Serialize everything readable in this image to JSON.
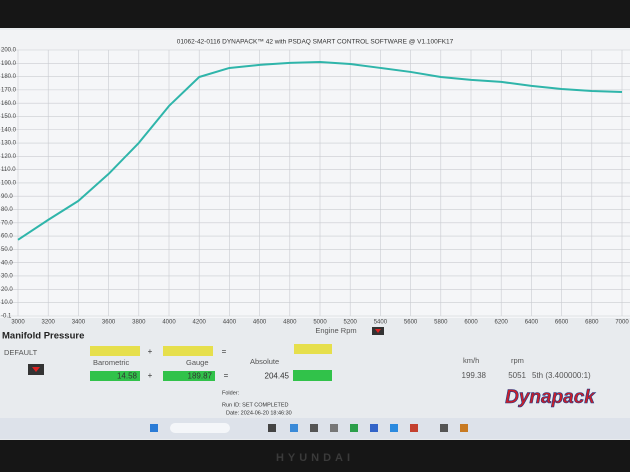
{
  "chart_data": {
    "type": "line",
    "title": "01062-42-0116 DYNAPACK™ 42 with PSDAQ SMART CONTROL SOFTWARE @ V1.100FK17",
    "x_label": "Engine Rpm",
    "x": [
      3000,
      3200,
      3400,
      3600,
      3800,
      4000,
      4200,
      4400,
      4600,
      4800,
      5000,
      5200,
      5400,
      5600,
      5800,
      6000,
      6200,
      6400,
      6600,
      6800,
      7000
    ],
    "series": [
      {
        "name": "Manifold Pressure",
        "color": "#2fb5aa",
        "values": [
          57.2,
          72.2,
          86.5,
          106.8,
          130.1,
          157.9,
          179.7,
          186.5,
          188.8,
          190.3,
          191.0,
          189.5,
          186.5,
          183.5,
          179.7,
          177.5,
          176.0,
          173.0,
          170.7,
          169.2,
          168.4
        ]
      }
    ],
    "xlim": [
      3000,
      7000
    ],
    "xticks": [
      3000,
      3200,
      3400,
      3600,
      3800,
      4000,
      4200,
      4400,
      4600,
      4800,
      5000,
      5200,
      5400,
      5600,
      5800,
      6000,
      6200,
      6400,
      6600,
      6800,
      7000
    ],
    "ylim": [
      -0.1,
      200
    ],
    "yticks": [
      -0.1,
      {
        "value": 10,
        "label": "10.0"
      },
      {
        "value": 20,
        "label": "20.0"
      },
      {
        "value": 30,
        "label": "30.0"
      },
      {
        "value": 40,
        "label": "40.0"
      },
      {
        "value": 50,
        "label": "50.0"
      },
      {
        "value": 60,
        "label": "60.0"
      },
      {
        "value": 70,
        "label": "70.0"
      },
      {
        "value": 80,
        "label": "80.0"
      },
      {
        "value": 90,
        "label": "90.0"
      },
      {
        "value": 100,
        "label": "100.0"
      },
      {
        "value": 110,
        "label": "110.0"
      },
      {
        "value": 120,
        "label": "120.0"
      },
      {
        "value": 130,
        "label": "130.0"
      },
      {
        "value": 140,
        "label": "140.0"
      },
      {
        "value": 150,
        "label": "150.0"
      },
      {
        "value": 160,
        "label": "160.0"
      },
      {
        "value": 170,
        "label": "170.0"
      },
      {
        "value": 180,
        "label": "180.0"
      },
      {
        "value": 190,
        "label": "190.0"
      },
      {
        "value": 200,
        "label": "200.0"
      }
    ],
    "grid": true
  },
  "panel": {
    "title": "Manifold Pressure",
    "preset": "DEFAULT",
    "plus": "+",
    "equals": "=",
    "barometric_label": "Barometric",
    "gauge_label": "Gauge",
    "absolute_label": "Absolute",
    "barometric": "14.58",
    "gauge": "189.87",
    "absolute": "204.45",
    "speed_label": "km/h",
    "rpm_label": "rpm",
    "speed": "199.38",
    "rpm": "5051",
    "gear": "5th (3.400000:1)",
    "folder": "Folder:",
    "run_id": "Run ID: SET COMPLETED",
    "date": "Date: 2024-06-20 18:46:30",
    "logo": "Dynapack"
  },
  "bezel_brand": "HYUNDAI"
}
